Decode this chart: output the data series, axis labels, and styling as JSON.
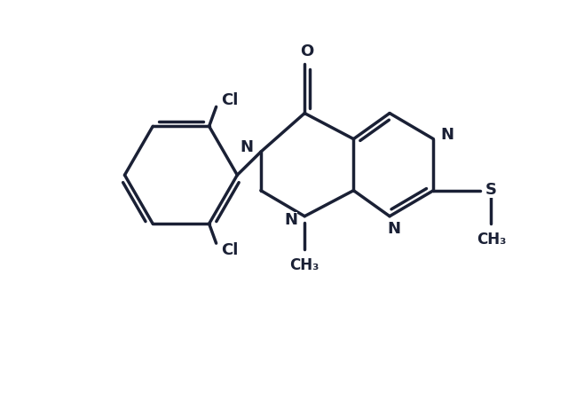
{
  "background_color": "#ffffff",
  "line_color": "#1a2035",
  "line_width": 2.5,
  "figsize": [
    6.4,
    4.7
  ],
  "dpi": 100,
  "xlim": [
    0,
    10
  ],
  "ylim": [
    0,
    8
  ],
  "font_size_atom": 13,
  "font_size_label": 12
}
